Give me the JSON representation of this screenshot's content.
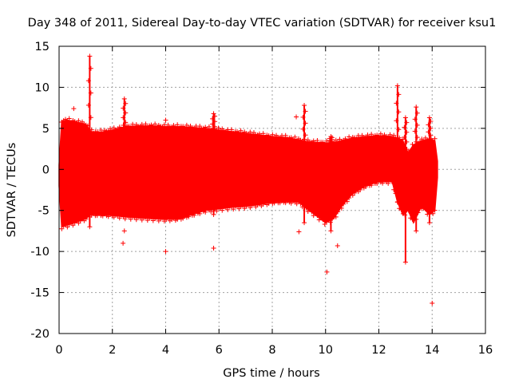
{
  "chart_data": {
    "type": "scatter",
    "title": "Day 348 of 2011, Sidereal Day-to-day VTEC variation (SDTVAR) for receiver ksu1",
    "xlabel": "GPS time / hours",
    "ylabel": "SDTVAR / TECUs",
    "xlim": [
      0,
      16
    ],
    "ylim": [
      -20,
      15
    ],
    "xticks": [
      0,
      2,
      4,
      6,
      8,
      10,
      12,
      14,
      16
    ],
    "yticks": [
      -20,
      -15,
      -10,
      -5,
      0,
      5,
      10,
      15
    ],
    "grid": true,
    "series_color": "#ff0000",
    "band": {
      "x": [
        0.0,
        0.1,
        0.3,
        0.6,
        1.0,
        1.2,
        1.5,
        2.0,
        2.5,
        3.0,
        3.5,
        4.0,
        4.5,
        5.0,
        5.5,
        6.0,
        6.5,
        7.0,
        7.5,
        8.0,
        8.5,
        9.0,
        9.3,
        9.6,
        10.0,
        10.3,
        10.6,
        11.0,
        11.5,
        12.0,
        12.5,
        12.7,
        12.9,
        13.1,
        13.3,
        13.6,
        13.9,
        14.1,
        14.2
      ],
      "upper": [
        0.5,
        5.9,
        6.0,
        5.8,
        5.5,
        4.6,
        4.5,
        4.8,
        5.2,
        5.3,
        5.3,
        5.2,
        5.2,
        5.1,
        5.0,
        4.8,
        4.6,
        4.4,
        4.2,
        4.0,
        3.9,
        3.6,
        3.4,
        3.3,
        3.2,
        3.3,
        3.5,
        3.8,
        4.0,
        4.1,
        4.0,
        3.8,
        3.5,
        2.0,
        3.0,
        3.5,
        3.7,
        3.5,
        1.0
      ],
      "lower": [
        -2.0,
        -7.0,
        -6.8,
        -6.5,
        -6.0,
        -5.5,
        -5.5,
        -5.6,
        -5.8,
        -5.9,
        -6.0,
        -6.1,
        -6.0,
        -5.5,
        -5.0,
        -4.8,
        -4.6,
        -4.5,
        -4.3,
        -4.0,
        -3.9,
        -4.0,
        -4.8,
        -5.5,
        -6.5,
        -6.0,
        -4.5,
        -3.0,
        -2.0,
        -1.5,
        -1.5,
        -4.0,
        -5.5,
        -5.0,
        -6.5,
        -4.5,
        -5.5,
        -5.0,
        -1.0
      ]
    },
    "spikes": [
      {
        "x": 1.15,
        "low": -7.0,
        "high": 13.8
      },
      {
        "x": 2.45,
        "low": -5.0,
        "high": 8.6
      },
      {
        "x": 5.8,
        "low": -5.5,
        "high": 6.8
      },
      {
        "x": 9.2,
        "low": -6.5,
        "high": 7.8
      },
      {
        "x": 10.2,
        "low": -7.5,
        "high": 4.0
      },
      {
        "x": 12.7,
        "low": -4.0,
        "high": 10.2
      },
      {
        "x": 13.0,
        "low": -11.3,
        "high": 6.3
      },
      {
        "x": 13.4,
        "low": -7.5,
        "high": 7.6
      },
      {
        "x": 13.9,
        "low": -6.5,
        "high": 6.3
      }
    ],
    "outliers": [
      {
        "x": 0.55,
        "y": 7.4
      },
      {
        "x": 2.4,
        "y": -9.0
      },
      {
        "x": 2.45,
        "y": -7.5
      },
      {
        "x": 4.0,
        "y": -10.0
      },
      {
        "x": 4.0,
        "y": 6.0
      },
      {
        "x": 5.8,
        "y": -9.6
      },
      {
        "x": 8.9,
        "y": 6.4
      },
      {
        "x": 9.0,
        "y": -7.6
      },
      {
        "x": 10.05,
        "y": -12.5
      },
      {
        "x": 10.45,
        "y": -9.3
      },
      {
        "x": 14.0,
        "y": -16.3
      }
    ]
  }
}
